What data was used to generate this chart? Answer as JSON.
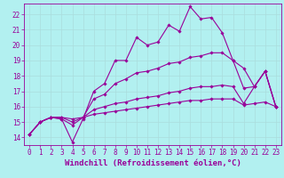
{
  "bg_color": "#b2f0f0",
  "line_color": "#990099",
  "grid_color": "#aadddd",
  "xlabel": "Windchill (Refroidissement éolien,°C)",
  "xlabel_fontsize": 6.5,
  "tick_fontsize": 5.5,
  "xlim": [
    -0.5,
    23.5
  ],
  "ylim": [
    13.5,
    22.7
  ],
  "yticks": [
    14,
    15,
    16,
    17,
    18,
    19,
    20,
    21,
    22
  ],
  "xticks": [
    0,
    1,
    2,
    3,
    4,
    5,
    6,
    7,
    8,
    9,
    10,
    11,
    12,
    13,
    14,
    15,
    16,
    17,
    18,
    19,
    20,
    21,
    22,
    23
  ],
  "series": [
    [
      14.2,
      15.0,
      15.3,
      15.2,
      13.7,
      15.2,
      17.0,
      17.5,
      19.0,
      19.0,
      20.5,
      20.0,
      20.2,
      21.3,
      20.9,
      22.5,
      21.7,
      21.8,
      20.8,
      19.0,
      18.5,
      17.3,
      18.3,
      16.0
    ],
    [
      14.2,
      15.0,
      15.3,
      15.2,
      14.8,
      15.3,
      16.5,
      16.8,
      17.5,
      17.8,
      18.2,
      18.3,
      18.5,
      18.8,
      18.9,
      19.2,
      19.3,
      19.5,
      19.5,
      19.0,
      17.2,
      17.3,
      18.3,
      16.0
    ],
    [
      14.2,
      15.0,
      15.3,
      15.3,
      15.0,
      15.3,
      15.8,
      16.0,
      16.2,
      16.3,
      16.5,
      16.6,
      16.7,
      16.9,
      17.0,
      17.2,
      17.3,
      17.3,
      17.4,
      17.3,
      16.2,
      17.3,
      18.3,
      16.0
    ],
    [
      14.2,
      15.0,
      15.3,
      15.3,
      15.2,
      15.3,
      15.5,
      15.6,
      15.7,
      15.8,
      15.9,
      16.0,
      16.1,
      16.2,
      16.3,
      16.4,
      16.4,
      16.5,
      16.5,
      16.5,
      16.1,
      16.2,
      16.3,
      16.0
    ]
  ],
  "marker": "D",
  "marker_size": 1.8,
  "linewidth": 0.8
}
